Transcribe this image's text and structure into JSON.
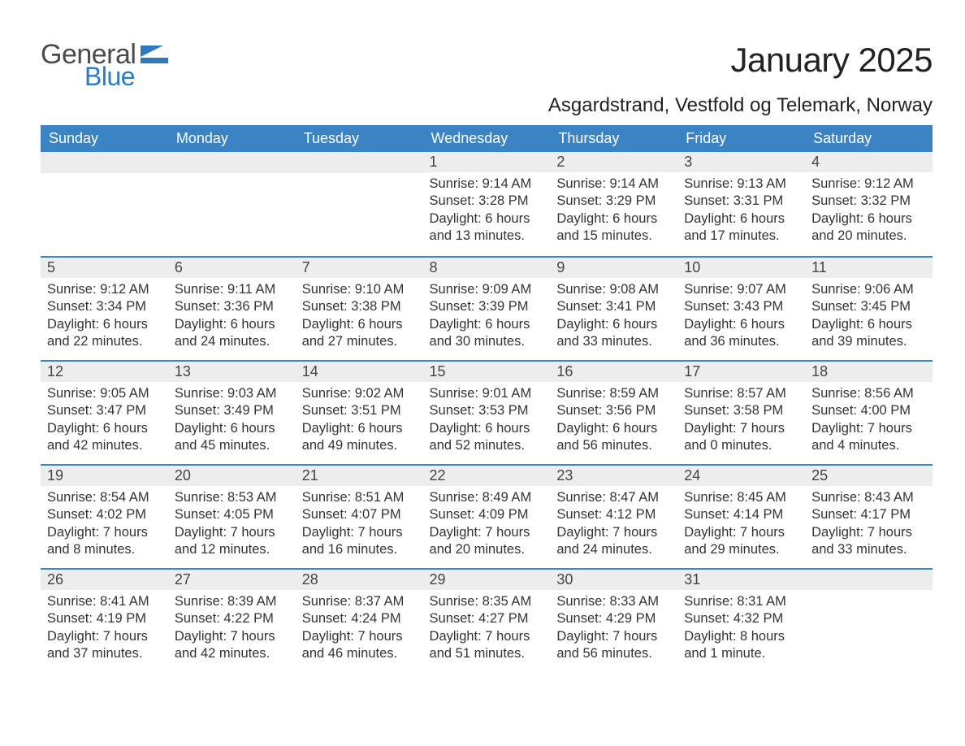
{
  "brand": {
    "general": "General",
    "blue": "Blue",
    "flag_color": "#2d7ac0"
  },
  "title": "January 2025",
  "location": "Asgardstrand, Vestfold og Telemark, Norway",
  "header_bg": "#3b83c2",
  "daynum_bg": "#ededed",
  "daynum_border": "#3b83c2",
  "text_color": "#333333",
  "day_headers": [
    "Sunday",
    "Monday",
    "Tuesday",
    "Wednesday",
    "Thursday",
    "Friday",
    "Saturday"
  ],
  "weeks": [
    [
      {
        "n": "",
        "sunrise": "",
        "sunset": "",
        "daylight1": "",
        "daylight2": ""
      },
      {
        "n": "",
        "sunrise": "",
        "sunset": "",
        "daylight1": "",
        "daylight2": ""
      },
      {
        "n": "",
        "sunrise": "",
        "sunset": "",
        "daylight1": "",
        "daylight2": ""
      },
      {
        "n": "1",
        "sunrise": "Sunrise: 9:14 AM",
        "sunset": "Sunset: 3:28 PM",
        "daylight1": "Daylight: 6 hours",
        "daylight2": "and 13 minutes."
      },
      {
        "n": "2",
        "sunrise": "Sunrise: 9:14 AM",
        "sunset": "Sunset: 3:29 PM",
        "daylight1": "Daylight: 6 hours",
        "daylight2": "and 15 minutes."
      },
      {
        "n": "3",
        "sunrise": "Sunrise: 9:13 AM",
        "sunset": "Sunset: 3:31 PM",
        "daylight1": "Daylight: 6 hours",
        "daylight2": "and 17 minutes."
      },
      {
        "n": "4",
        "sunrise": "Sunrise: 9:12 AM",
        "sunset": "Sunset: 3:32 PM",
        "daylight1": "Daylight: 6 hours",
        "daylight2": "and 20 minutes."
      }
    ],
    [
      {
        "n": "5",
        "sunrise": "Sunrise: 9:12 AM",
        "sunset": "Sunset: 3:34 PM",
        "daylight1": "Daylight: 6 hours",
        "daylight2": "and 22 minutes."
      },
      {
        "n": "6",
        "sunrise": "Sunrise: 9:11 AM",
        "sunset": "Sunset: 3:36 PM",
        "daylight1": "Daylight: 6 hours",
        "daylight2": "and 24 minutes."
      },
      {
        "n": "7",
        "sunrise": "Sunrise: 9:10 AM",
        "sunset": "Sunset: 3:38 PM",
        "daylight1": "Daylight: 6 hours",
        "daylight2": "and 27 minutes."
      },
      {
        "n": "8",
        "sunrise": "Sunrise: 9:09 AM",
        "sunset": "Sunset: 3:39 PM",
        "daylight1": "Daylight: 6 hours",
        "daylight2": "and 30 minutes."
      },
      {
        "n": "9",
        "sunrise": "Sunrise: 9:08 AM",
        "sunset": "Sunset: 3:41 PM",
        "daylight1": "Daylight: 6 hours",
        "daylight2": "and 33 minutes."
      },
      {
        "n": "10",
        "sunrise": "Sunrise: 9:07 AM",
        "sunset": "Sunset: 3:43 PM",
        "daylight1": "Daylight: 6 hours",
        "daylight2": "and 36 minutes."
      },
      {
        "n": "11",
        "sunrise": "Sunrise: 9:06 AM",
        "sunset": "Sunset: 3:45 PM",
        "daylight1": "Daylight: 6 hours",
        "daylight2": "and 39 minutes."
      }
    ],
    [
      {
        "n": "12",
        "sunrise": "Sunrise: 9:05 AM",
        "sunset": "Sunset: 3:47 PM",
        "daylight1": "Daylight: 6 hours",
        "daylight2": "and 42 minutes."
      },
      {
        "n": "13",
        "sunrise": "Sunrise: 9:03 AM",
        "sunset": "Sunset: 3:49 PM",
        "daylight1": "Daylight: 6 hours",
        "daylight2": "and 45 minutes."
      },
      {
        "n": "14",
        "sunrise": "Sunrise: 9:02 AM",
        "sunset": "Sunset: 3:51 PM",
        "daylight1": "Daylight: 6 hours",
        "daylight2": "and 49 minutes."
      },
      {
        "n": "15",
        "sunrise": "Sunrise: 9:01 AM",
        "sunset": "Sunset: 3:53 PM",
        "daylight1": "Daylight: 6 hours",
        "daylight2": "and 52 minutes."
      },
      {
        "n": "16",
        "sunrise": "Sunrise: 8:59 AM",
        "sunset": "Sunset: 3:56 PM",
        "daylight1": "Daylight: 6 hours",
        "daylight2": "and 56 minutes."
      },
      {
        "n": "17",
        "sunrise": "Sunrise: 8:57 AM",
        "sunset": "Sunset: 3:58 PM",
        "daylight1": "Daylight: 7 hours",
        "daylight2": "and 0 minutes."
      },
      {
        "n": "18",
        "sunrise": "Sunrise: 8:56 AM",
        "sunset": "Sunset: 4:00 PM",
        "daylight1": "Daylight: 7 hours",
        "daylight2": "and 4 minutes."
      }
    ],
    [
      {
        "n": "19",
        "sunrise": "Sunrise: 8:54 AM",
        "sunset": "Sunset: 4:02 PM",
        "daylight1": "Daylight: 7 hours",
        "daylight2": "and 8 minutes."
      },
      {
        "n": "20",
        "sunrise": "Sunrise: 8:53 AM",
        "sunset": "Sunset: 4:05 PM",
        "daylight1": "Daylight: 7 hours",
        "daylight2": "and 12 minutes."
      },
      {
        "n": "21",
        "sunrise": "Sunrise: 8:51 AM",
        "sunset": "Sunset: 4:07 PM",
        "daylight1": "Daylight: 7 hours",
        "daylight2": "and 16 minutes."
      },
      {
        "n": "22",
        "sunrise": "Sunrise: 8:49 AM",
        "sunset": "Sunset: 4:09 PM",
        "daylight1": "Daylight: 7 hours",
        "daylight2": "and 20 minutes."
      },
      {
        "n": "23",
        "sunrise": "Sunrise: 8:47 AM",
        "sunset": "Sunset: 4:12 PM",
        "daylight1": "Daylight: 7 hours",
        "daylight2": "and 24 minutes."
      },
      {
        "n": "24",
        "sunrise": "Sunrise: 8:45 AM",
        "sunset": "Sunset: 4:14 PM",
        "daylight1": "Daylight: 7 hours",
        "daylight2": "and 29 minutes."
      },
      {
        "n": "25",
        "sunrise": "Sunrise: 8:43 AM",
        "sunset": "Sunset: 4:17 PM",
        "daylight1": "Daylight: 7 hours",
        "daylight2": "and 33 minutes."
      }
    ],
    [
      {
        "n": "26",
        "sunrise": "Sunrise: 8:41 AM",
        "sunset": "Sunset: 4:19 PM",
        "daylight1": "Daylight: 7 hours",
        "daylight2": "and 37 minutes."
      },
      {
        "n": "27",
        "sunrise": "Sunrise: 8:39 AM",
        "sunset": "Sunset: 4:22 PM",
        "daylight1": "Daylight: 7 hours",
        "daylight2": "and 42 minutes."
      },
      {
        "n": "28",
        "sunrise": "Sunrise: 8:37 AM",
        "sunset": "Sunset: 4:24 PM",
        "daylight1": "Daylight: 7 hours",
        "daylight2": "and 46 minutes."
      },
      {
        "n": "29",
        "sunrise": "Sunrise: 8:35 AM",
        "sunset": "Sunset: 4:27 PM",
        "daylight1": "Daylight: 7 hours",
        "daylight2": "and 51 minutes."
      },
      {
        "n": "30",
        "sunrise": "Sunrise: 8:33 AM",
        "sunset": "Sunset: 4:29 PM",
        "daylight1": "Daylight: 7 hours",
        "daylight2": "and 56 minutes."
      },
      {
        "n": "31",
        "sunrise": "Sunrise: 8:31 AM",
        "sunset": "Sunset: 4:32 PM",
        "daylight1": "Daylight: 8 hours",
        "daylight2": "and 1 minute."
      },
      {
        "n": "",
        "sunrise": "",
        "sunset": "",
        "daylight1": "",
        "daylight2": ""
      }
    ]
  ]
}
